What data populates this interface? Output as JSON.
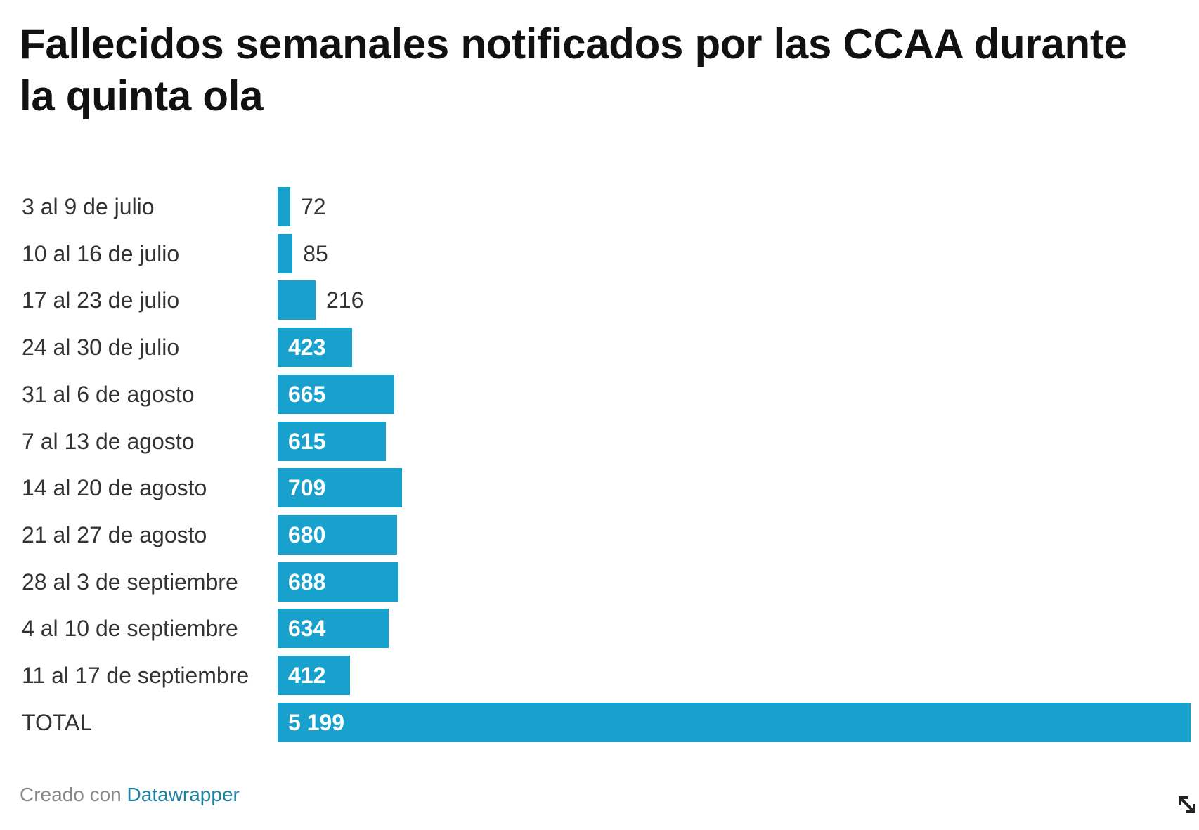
{
  "title": "Fallecidos semanales notificados por las CCAA durante la quinta ola",
  "footer": {
    "prefix": "Creado con",
    "link_text": "Datawrapper"
  },
  "colors": {
    "bar": "#18a1cd",
    "title": "#111111",
    "link": "#1d81a2"
  },
  "chart_data": {
    "type": "bar",
    "orientation": "horizontal",
    "categories": [
      "3 al 9 de julio",
      "10 al 16 de julio",
      "17 al 23 de julio",
      "24 al 30 de julio",
      "31 al 6 de agosto",
      "7 al 13 de agosto",
      "14 al 20 de agosto",
      "21 al 27 de agosto",
      "28 al 3 de septiembre",
      "4 al 10 de septiembre",
      "11 al 17 de septiembre",
      "TOTAL"
    ],
    "values": [
      72,
      85,
      216,
      423,
      665,
      615,
      709,
      680,
      688,
      634,
      412,
      5199
    ],
    "value_labels": [
      "72",
      "85",
      "216",
      "423",
      "665",
      "615",
      "709",
      "680",
      "688",
      "634",
      "412",
      "5 199"
    ],
    "xlim": [
      0,
      5199
    ],
    "grid": false,
    "legend": "none"
  }
}
